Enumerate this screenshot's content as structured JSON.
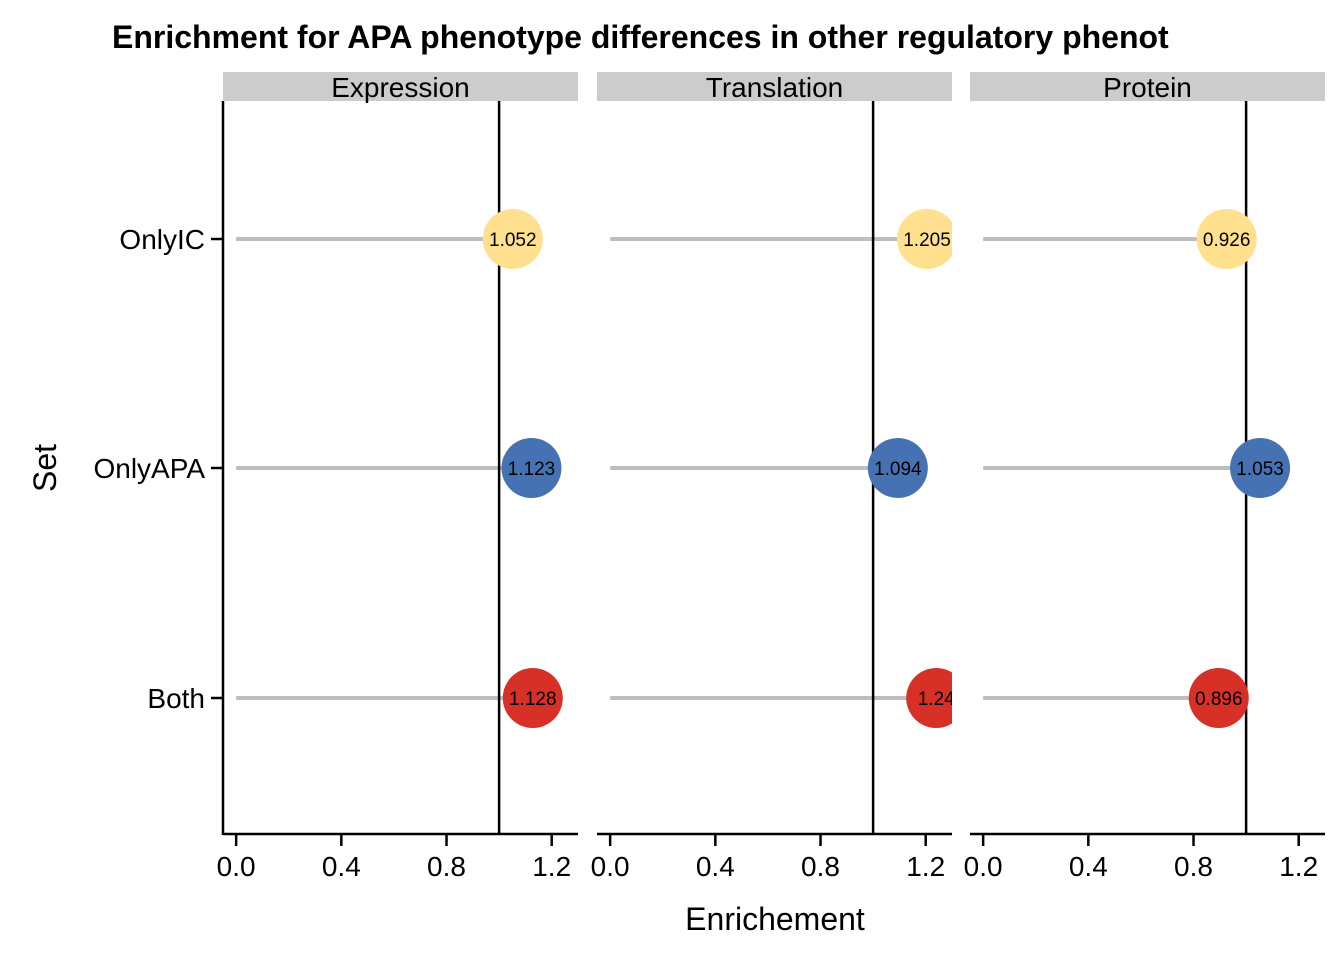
{
  "chart_data": {
    "type": "lollipop",
    "title": "Enrichment for APA phenotype differences in other regulatory phenot",
    "xlabel": "Enrichement",
    "ylabel": "Set",
    "categories": [
      "OnlyIC",
      "OnlyAPA",
      "Both"
    ],
    "xlim": [
      -0.05,
      1.3
    ],
    "xticks": [
      0.0,
      0.4,
      0.8,
      1.2
    ],
    "xtick_labels": [
      "0.0",
      "0.4",
      "0.8",
      "1.2"
    ],
    "reference_line": 1.0,
    "grid": false,
    "legend": "none",
    "colors": {
      "OnlyIC": "#FFE08F",
      "OnlyAPA": "#4672B4",
      "Both": "#D73027",
      "stem": "#BEBEBE",
      "strip": "#CCCCCC"
    },
    "panels": [
      {
        "name": "Expression",
        "values": [
          1.052,
          1.123,
          1.128
        ],
        "labels": [
          "1.052",
          "1.123",
          "1.128"
        ]
      },
      {
        "name": "Translation",
        "values": [
          1.205,
          1.094,
          1.24
        ],
        "labels": [
          "1.205",
          "1.094",
          "1.24"
        ]
      },
      {
        "name": "Protein",
        "values": [
          0.926,
          1.053,
          0.896
        ],
        "labels": [
          "0.926",
          "1.053",
          "0.896"
        ]
      }
    ]
  }
}
